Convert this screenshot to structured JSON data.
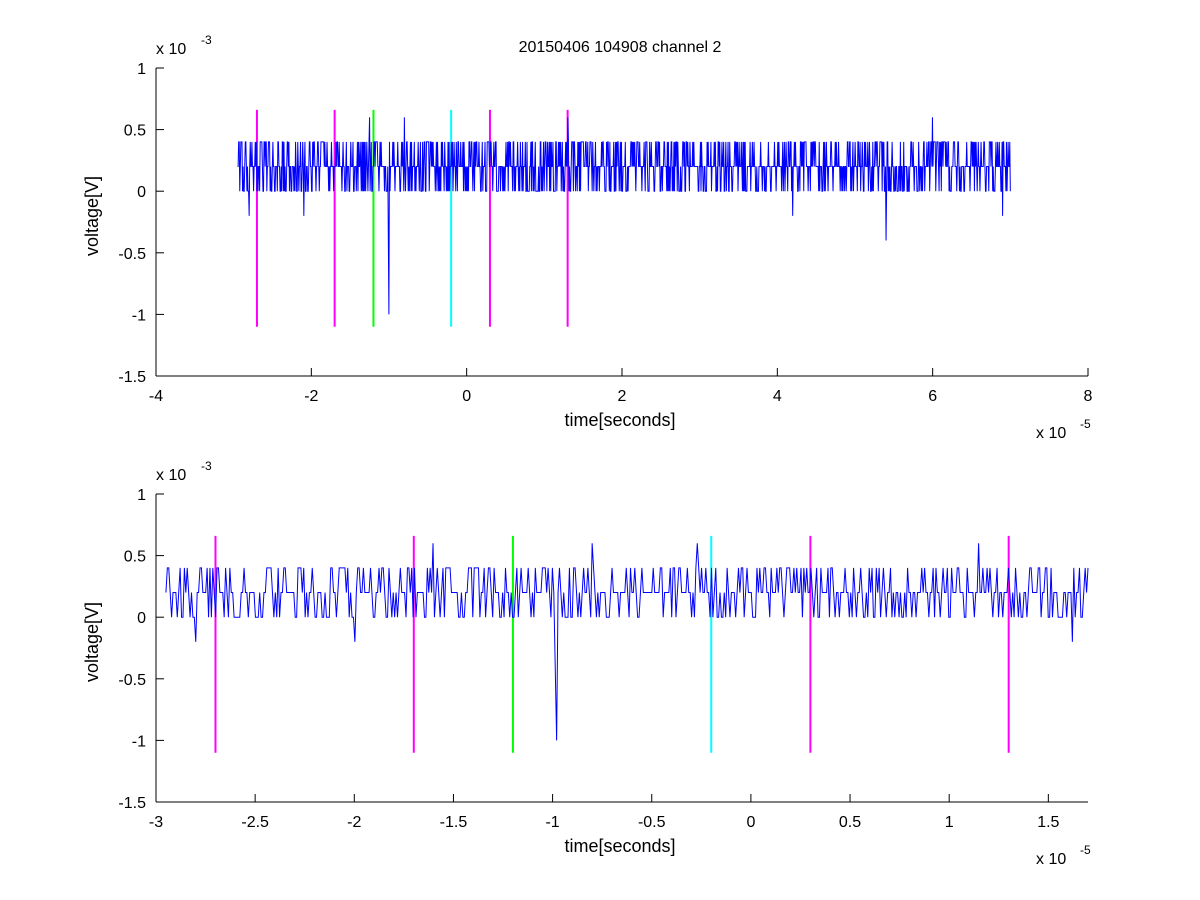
{
  "figure": {
    "title": "20150406 104908 channel 2",
    "background": "#ffffff",
    "colors": {
      "signal": "#0000ff",
      "marker_magenta": "#ff00ff",
      "marker_green": "#00ff00",
      "marker_cyan": "#00ffff",
      "axes": "#000000"
    }
  },
  "chart_data": [
    {
      "type": "line",
      "title": "20150406 104908 channel 2",
      "xlabel": "time[seconds]",
      "ylabel": "voltage[V]",
      "x_exponent_label": "x 10",
      "x_exponent": "-5",
      "y_exponent_label": "x 10",
      "y_exponent": "-3",
      "xlim": [
        -4e-05,
        8e-05
      ],
      "ylim": [
        -0.0015,
        0.001
      ],
      "xticks": [
        -4e-05,
        -2e-05,
        0,
        2e-05,
        4e-05,
        6e-05,
        8e-05
      ],
      "xtick_labels": [
        "-4",
        "-2",
        "0",
        "2",
        "4",
        "6",
        "8"
      ],
      "yticks": [
        -0.0015,
        -0.001,
        -0.0005,
        0,
        0.0005,
        0.001
      ],
      "ytick_labels": [
        "-1.5",
        "-1",
        "-0.5",
        "0",
        "0.5",
        "1"
      ],
      "grid": false,
      "series": [
        {
          "color": "#0000ff",
          "x_start": -2.95e-05,
          "x_end": 7e-05,
          "levels": [
            0,
            0.0002,
            0.0004
          ],
          "notable_points": [
            {
              "x": -2.8e-05,
              "y": -0.0002
            },
            {
              "x": -2.1e-05,
              "y": -0.0002
            },
            {
              "x": -1e-05,
              "y": -0.001
            },
            {
              "x": -1.25e-05,
              "y": 0.0006
            },
            {
              "x": -8e-06,
              "y": 0.0006
            },
            {
              "x": 1.3e-05,
              "y": 0.0006
            },
            {
              "x": 6e-05,
              "y": 0.0006
            },
            {
              "x": 5.4e-05,
              "y": -0.0004
            },
            {
              "x": 4.2e-05,
              "y": -0.0002
            },
            {
              "x": 6.9e-05,
              "y": -0.0002
            }
          ]
        }
      ],
      "markers": [
        {
          "x": -2.7e-05,
          "y0": -0.0011,
          "y1": 0.00066,
          "color": "#ff00ff"
        },
        {
          "x": -1.7e-05,
          "y0": -0.0011,
          "y1": 0.00066,
          "color": "#ff00ff"
        },
        {
          "x": -1.2e-05,
          "y0": -0.0011,
          "y1": 0.00066,
          "color": "#00ff00"
        },
        {
          "x": -2e-06,
          "y0": -0.0011,
          "y1": 0.00066,
          "color": "#00ffff"
        },
        {
          "x": 3e-06,
          "y0": -0.0011,
          "y1": 0.00066,
          "color": "#ff00ff"
        },
        {
          "x": 1.3e-05,
          "y0": -0.0011,
          "y1": 0.00066,
          "color": "#ff00ff"
        }
      ]
    },
    {
      "type": "line",
      "title": "",
      "xlabel": "time[seconds]",
      "ylabel": "voltage[V]",
      "x_exponent_label": "x 10",
      "x_exponent": "-5",
      "y_exponent_label": "x 10",
      "y_exponent": "-3",
      "xlim": [
        -3e-05,
        1.7e-05
      ],
      "ylim": [
        -0.0015,
        0.001
      ],
      "xticks": [
        -3e-05,
        -2.5e-05,
        -2e-05,
        -1.5e-05,
        -1e-05,
        -5e-06,
        0,
        5e-06,
        1e-05,
        1.5e-05
      ],
      "xtick_labels": [
        "-3",
        "-2.5",
        "-2",
        "-1.5",
        "-1",
        "-0.5",
        "0",
        "0.5",
        "1",
        "1.5"
      ],
      "yticks": [
        -0.0015,
        -0.001,
        -0.0005,
        0,
        0.0005,
        0.001
      ],
      "ytick_labels": [
        "-1.5",
        "-1",
        "-0.5",
        "0",
        "0.5",
        "1"
      ],
      "grid": false,
      "series": [
        {
          "color": "#0000ff",
          "x_start": -2.95e-05,
          "x_end": 1.7e-05,
          "levels": [
            0,
            0.0002,
            0.0004
          ],
          "notable_points": [
            {
              "x": -2.8e-05,
              "y": -0.0002
            },
            {
              "x": -2e-05,
              "y": -0.0002
            },
            {
              "x": -1.6e-05,
              "y": 0.0006
            },
            {
              "x": -9.8e-06,
              "y": -0.001
            },
            {
              "x": -8e-06,
              "y": 0.0006
            },
            {
              "x": -2.7e-06,
              "y": 0.0006
            },
            {
              "x": 1.15e-05,
              "y": 0.0006
            },
            {
              "x": 1.62e-05,
              "y": -0.0002
            }
          ]
        }
      ],
      "markers": [
        {
          "x": -2.7e-05,
          "y0": -0.0011,
          "y1": 0.00066,
          "color": "#ff00ff"
        },
        {
          "x": -1.7e-05,
          "y0": -0.0011,
          "y1": 0.00066,
          "color": "#ff00ff"
        },
        {
          "x": -1.2e-05,
          "y0": -0.0011,
          "y1": 0.00066,
          "color": "#00ff00"
        },
        {
          "x": -2e-06,
          "y0": -0.0011,
          "y1": 0.00066,
          "color": "#00ffff"
        },
        {
          "x": 3e-06,
          "y0": -0.0011,
          "y1": 0.00066,
          "color": "#ff00ff"
        },
        {
          "x": 1.3e-05,
          "y0": -0.0011,
          "y1": 0.00066,
          "color": "#ff00ff"
        }
      ]
    }
  ]
}
